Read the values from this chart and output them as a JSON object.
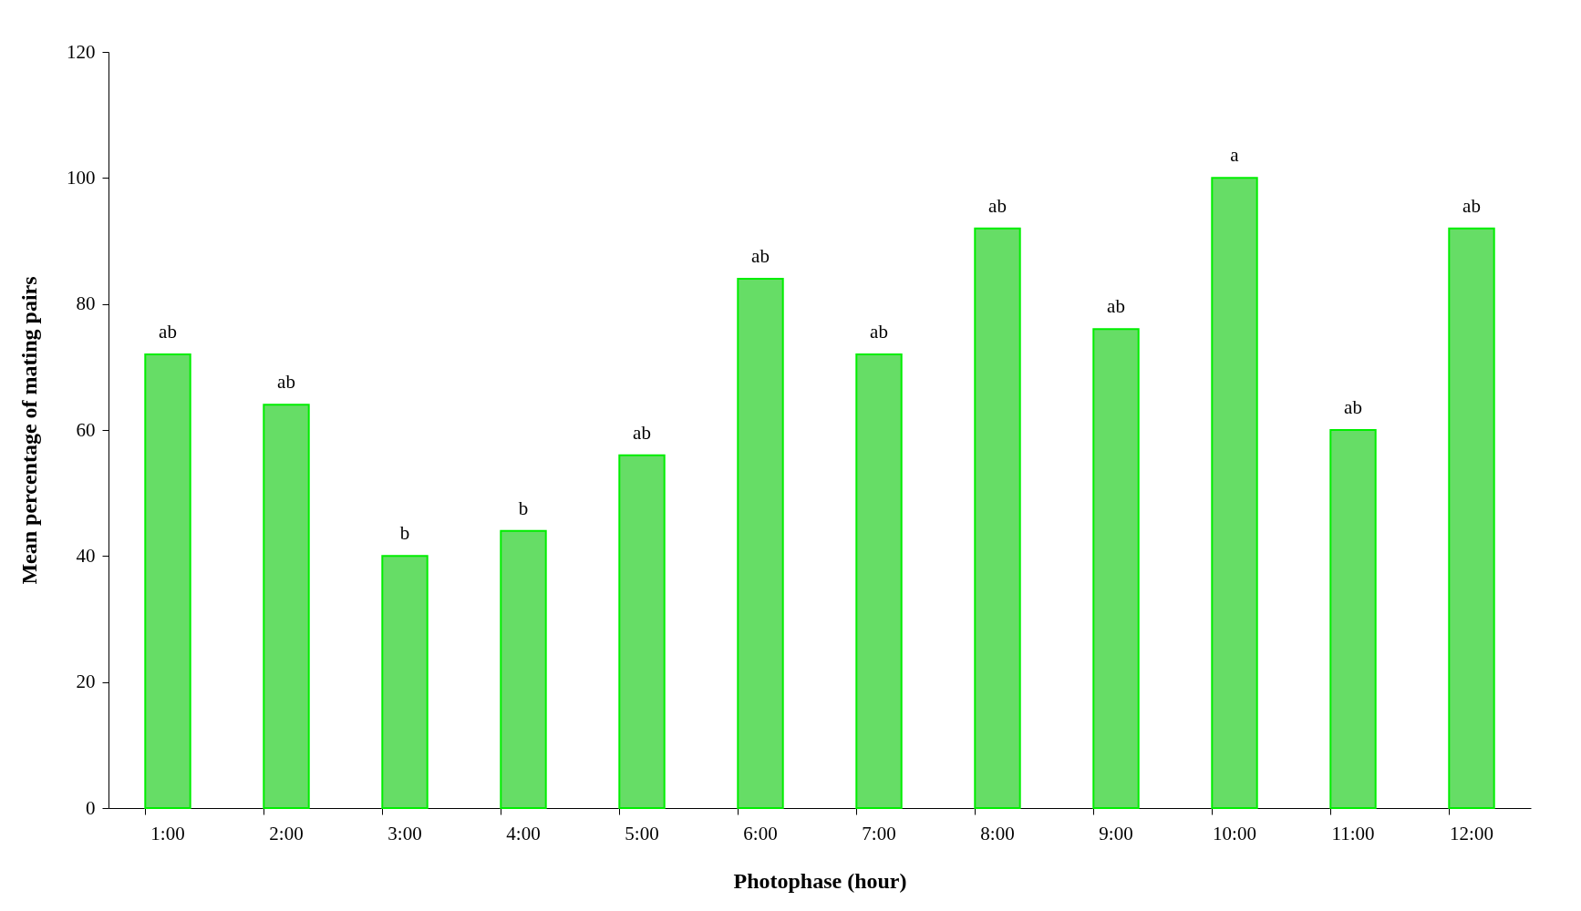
{
  "chart_data": {
    "type": "bar",
    "xlabel": "Photophase (hour)",
    "ylabel": "Mean percentage of mating pairs",
    "categories": [
      "1:00",
      "2:00",
      "3:00",
      "4:00",
      "5:00",
      "6:00",
      "7:00",
      "8:00",
      "9:00",
      "10:00",
      "11:00",
      "12:00"
    ],
    "values": [
      72,
      64,
      40,
      44,
      56,
      84,
      72,
      92,
      76,
      100,
      60,
      92
    ],
    "color": "#66dd66",
    "ylim": [
      0,
      120
    ],
    "yticks": [
      0,
      20,
      40,
      60,
      80,
      100,
      120
    ],
    "grid": false,
    "annotations": [
      {
        "text": "ab",
        "x": "1:00",
        "y": 72
      },
      {
        "text": "ab",
        "x": "2:00",
        "y": 64
      },
      {
        "text": "b",
        "x": "3:00",
        "y": 40
      },
      {
        "text": "b",
        "x": "4:00",
        "y": 44
      },
      {
        "text": "ab",
        "x": "5:00",
        "y": 56
      },
      {
        "text": "ab",
        "x": "6:00",
        "y": 84
      },
      {
        "text": "ab",
        "x": "7:00",
        "y": 72
      },
      {
        "text": "ab",
        "x": "8:00",
        "y": 92
      },
      {
        "text": "ab",
        "x": "9:00",
        "y": 76
      },
      {
        "text": "a",
        "x": "10:00",
        "y": 100
      },
      {
        "text": "ab",
        "x": "11:00",
        "y": 60
      },
      {
        "text": "ab",
        "x": "12:00",
        "y": 92
      }
    ]
  }
}
